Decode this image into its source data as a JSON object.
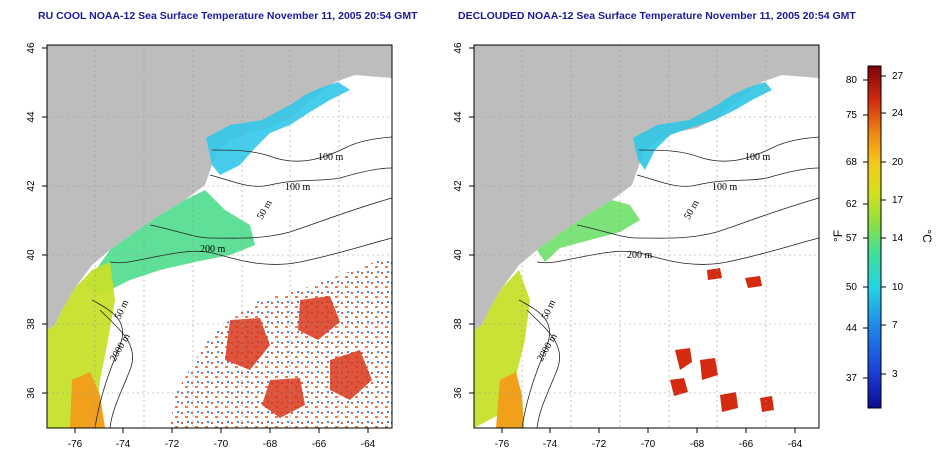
{
  "panels": [
    {
      "title": "RU COOL NOAA-12 Sea Surface Temperature November 11, 2005 20:54 GMT",
      "x_ticks": [
        "-76",
        "-74",
        "-72",
        "-70",
        "-68",
        "-66",
        "-64"
      ],
      "y_ticks": [
        "46",
        "44",
        "42",
        "40",
        "38",
        "36"
      ],
      "contour_labels": [
        "100 m",
        "100 m",
        "50 m",
        "200 m",
        "50 m",
        "2000 m"
      ]
    },
    {
      "title": "DECLOUDED NOAA-12 Sea Surface Temperature November 11, 2005 20:54 GMT",
      "x_ticks": [
        "-76",
        "-74",
        "-72",
        "-70",
        "-68",
        "-66",
        "-64"
      ],
      "y_ticks": [
        "46",
        "44",
        "42",
        "40",
        "38",
        "36"
      ],
      "contour_labels": [
        "100 m",
        "100 m",
        "50 m",
        "200 m",
        "50 m",
        "2000 m"
      ]
    }
  ],
  "colorbar": {
    "fahrenheit_ticks": [
      "80",
      "75",
      "68",
      "62",
      "57",
      "50",
      "44",
      "37"
    ],
    "celsius_ticks": [
      "27",
      "24",
      "20",
      "17",
      "14",
      "10",
      "7",
      "3"
    ],
    "fahrenheit_unit": "°F",
    "celsius_unit": "°C",
    "min_c": 0,
    "max_c": 28
  },
  "colors": {
    "land": "#bdbdbd",
    "ocean_blank": "#ffffff",
    "title": "#1a1a9c",
    "contour": "#222222",
    "grid": "#9a9a9a"
  }
}
